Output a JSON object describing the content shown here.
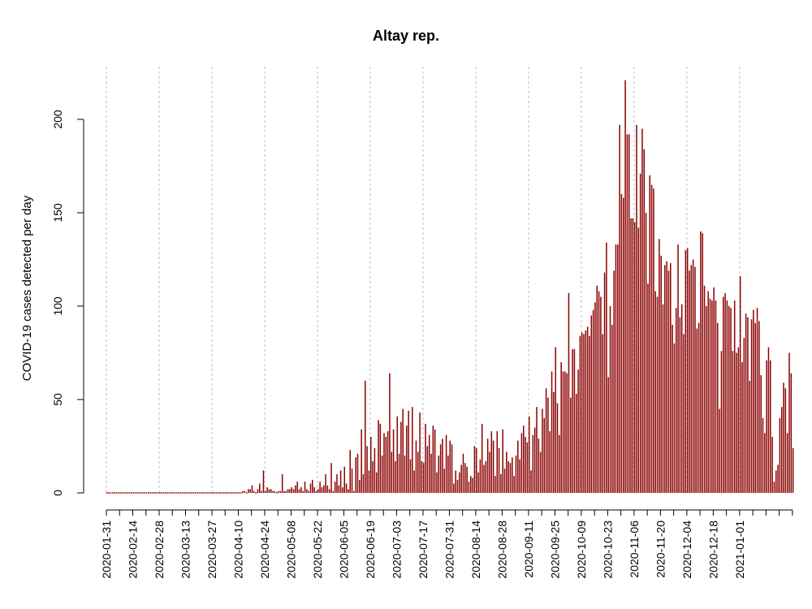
{
  "chart_data": {
    "type": "bar",
    "title": "Altay rep.",
    "xlabel": "",
    "ylabel": "COVID-19 cases detected per day",
    "start_date": "2020-01-31",
    "x_tick_labels": [
      "2020-01-31",
      "2020-02-14",
      "2020-02-28",
      "2020-03-13",
      "2020-03-27",
      "2020-04-10",
      "2020-04-24",
      "2020-05-08",
      "2020-05-22",
      "2020-06-05",
      "2020-06-19",
      "2020-07-03",
      "2020-07-17",
      "2020-07-31",
      "2020-08-14",
      "2020-08-28",
      "2020-09-11",
      "2020-09-25",
      "2020-10-09",
      "2020-10-23",
      "2020-11-06",
      "2020-11-20",
      "2020-12-04",
      "2020-12-18",
      "2021-01-01"
    ],
    "y_ticks": [
      0,
      50,
      100,
      150,
      200
    ],
    "ylim": [
      0,
      220
    ],
    "grid": "vertical dashed at every second labeled date",
    "color": "#8b0000",
    "values": [
      0,
      0,
      0,
      0,
      0,
      0,
      0,
      0,
      0,
      0,
      0,
      0,
      0,
      0,
      0,
      0,
      0,
      0,
      0,
      0,
      0,
      0,
      0,
      0,
      0,
      0,
      0,
      0,
      0,
      0,
      0,
      0,
      0,
      0,
      0,
      0,
      0,
      0,
      0,
      0,
      0,
      0,
      0,
      0,
      0,
      0,
      0,
      0,
      0,
      0,
      0,
      0,
      0,
      0,
      0,
      0,
      0,
      0,
      0,
      0,
      0,
      0,
      0,
      0,
      0,
      0,
      0,
      0,
      0,
      0,
      0,
      0,
      1,
      1,
      0,
      2,
      2,
      4,
      1,
      0,
      2,
      5,
      1,
      12,
      1,
      3,
      2,
      2,
      1,
      1,
      0,
      1,
      1,
      10,
      1,
      1,
      2,
      2,
      3,
      2,
      4,
      6,
      2,
      3,
      1,
      6,
      2,
      1,
      5,
      7,
      3,
      1,
      2,
      6,
      3,
      4,
      10,
      4,
      2,
      16,
      1,
      6,
      10,
      4,
      12,
      3,
      14,
      5,
      2,
      23,
      13,
      1,
      19,
      21,
      7,
      34,
      10,
      60,
      25,
      12,
      30,
      17,
      24,
      11,
      39,
      37,
      20,
      32,
      30,
      33,
      64,
      22,
      34,
      17,
      41,
      21,
      38,
      45,
      20,
      36,
      44,
      18,
      46,
      12,
      28,
      22,
      43,
      17,
      16,
      37,
      25,
      31,
      21,
      36,
      34,
      11,
      20,
      26,
      29,
      13,
      31,
      20,
      28,
      26,
      5,
      12,
      7,
      11,
      15,
      21,
      16,
      14,
      6,
      9,
      8,
      25,
      24,
      11,
      18,
      37,
      15,
      17,
      29,
      22,
      33,
      28,
      9,
      33,
      24,
      10,
      34,
      13,
      22,
      17,
      16,
      19,
      9,
      20,
      28,
      18,
      32,
      36,
      30,
      27,
      41,
      12,
      31,
      35,
      46,
      29,
      22,
      45,
      40,
      56,
      51,
      33,
      65,
      54,
      78,
      48,
      31,
      70,
      65,
      65,
      64,
      107,
      51,
      77,
      77,
      53,
      66,
      84,
      86,
      85,
      87,
      89,
      84,
      95,
      98,
      102,
      111,
      108,
      105,
      85,
      118,
      134,
      62,
      100,
      90,
      119,
      133,
      133,
      197,
      160,
      158,
      221,
      192,
      192,
      147,
      147,
      145,
      197,
      142,
      171,
      195,
      184,
      150,
      112,
      170,
      165,
      163,
      108,
      105,
      136,
      127,
      101,
      122,
      124,
      119,
      123,
      90,
      80,
      99,
      133,
      94,
      101,
      85,
      130,
      131,
      119,
      122,
      125,
      121,
      88,
      91,
      140,
      139,
      111,
      100,
      108,
      104,
      103,
      110,
      103,
      91,
      45,
      76,
      105,
      107,
      103,
      100,
      99,
      76,
      103,
      75,
      78,
      116,
      70,
      83,
      96,
      94,
      60,
      93,
      98,
      91,
      99,
      92,
      63,
      40,
      32,
      71,
      78,
      71,
      30,
      6,
      12,
      15,
      40,
      46,
      59,
      56,
      32,
      75,
      64,
      24
    ]
  }
}
